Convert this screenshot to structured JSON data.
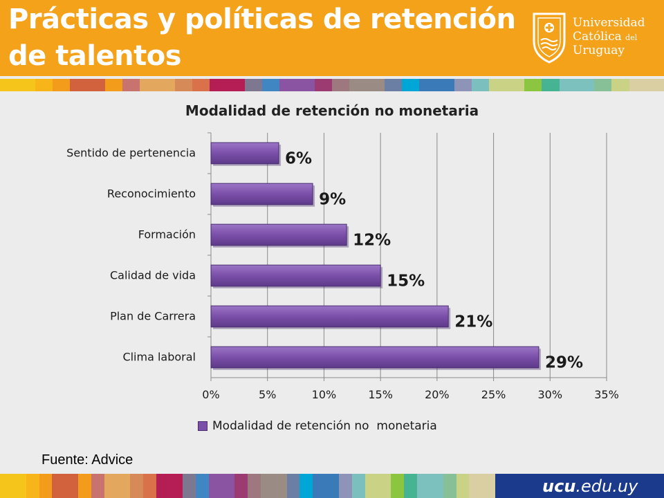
{
  "header": {
    "title": "Prácticas y políticas de retención de talentos",
    "logo": {
      "line1": "Universidad",
      "line2": "Católica",
      "line2_small": "del",
      "line3": "Uruguay"
    }
  },
  "colors": {
    "header_bg": "#f5a21b",
    "bar_fill": "#7a4fa8",
    "footer_blue": "#1b3a8c",
    "strip": [
      "#f6c51c",
      "#f7b51a",
      "#f39c1b",
      "#d2623e",
      "#f39c1b",
      "#c9736f",
      "#e3a85d",
      "#d58a57",
      "#d9724a",
      "#b41e54",
      "#7d7790",
      "#3f86c2",
      "#8a54a2",
      "#9c3a72",
      "#9d797f",
      "#9a8b85",
      "#6b7fa4",
      "#00a6d6",
      "#3a7ab8",
      "#8e93b8",
      "#7bc0bf",
      "#c9d285",
      "#8cc53f",
      "#46b393",
      "#7cc1bd",
      "#87c097",
      "#c9d285",
      "#d9cfa3"
    ]
  },
  "chart_data": {
    "type": "bar",
    "orientation": "horizontal",
    "title": "Modalidad de retención no monetaria",
    "categories": [
      "Sentido de pertenencia",
      "Reconocimiento",
      "Formación",
      "Calidad de vida",
      "Plan de Carrera",
      "Clima laboral"
    ],
    "series": [
      {
        "name": "Modalidad de retención no  monetaria",
        "values": [
          6,
          9,
          12,
          15,
          21,
          29
        ]
      }
    ],
    "data_labels": [
      "6%",
      "9%",
      "12%",
      "15%",
      "21%",
      "29%"
    ],
    "xlim": [
      0,
      35
    ],
    "x_ticks": [
      0,
      5,
      10,
      15,
      20,
      25,
      30,
      35
    ],
    "x_tick_labels": [
      "0%",
      "5%",
      "10%",
      "15%",
      "20%",
      "25%",
      "30%",
      "35%"
    ],
    "grid": "vertical",
    "legend": "bottom"
  },
  "source": "Fuente:  Advice",
  "footer": {
    "url_bold": "ucu",
    "url_rest": ".edu.uy"
  }
}
